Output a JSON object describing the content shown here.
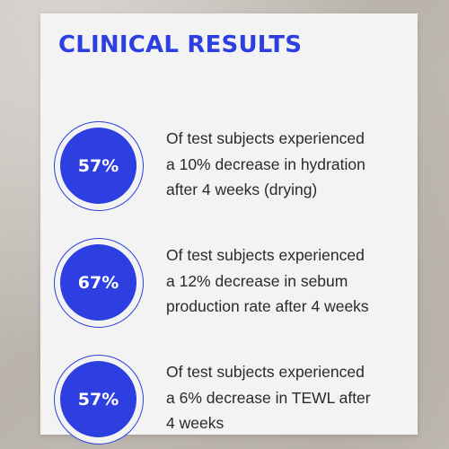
{
  "title": "CLINICAL RESULTS",
  "accent_color": "#2d3fe0",
  "results": [
    {
      "percent": "57%",
      "description": "Of test subjects experienced\na 10% decrease in hydration\nafter 4 weeks (drying)"
    },
    {
      "percent": "67%",
      "description": "Of test subjects experienced\na 12% decrease in sebum\nproduction rate after 4 weeks"
    },
    {
      "percent": "57%",
      "description": "Of test subjects experienced\na 6% decrease in TEWL after\n4 weeks"
    }
  ]
}
